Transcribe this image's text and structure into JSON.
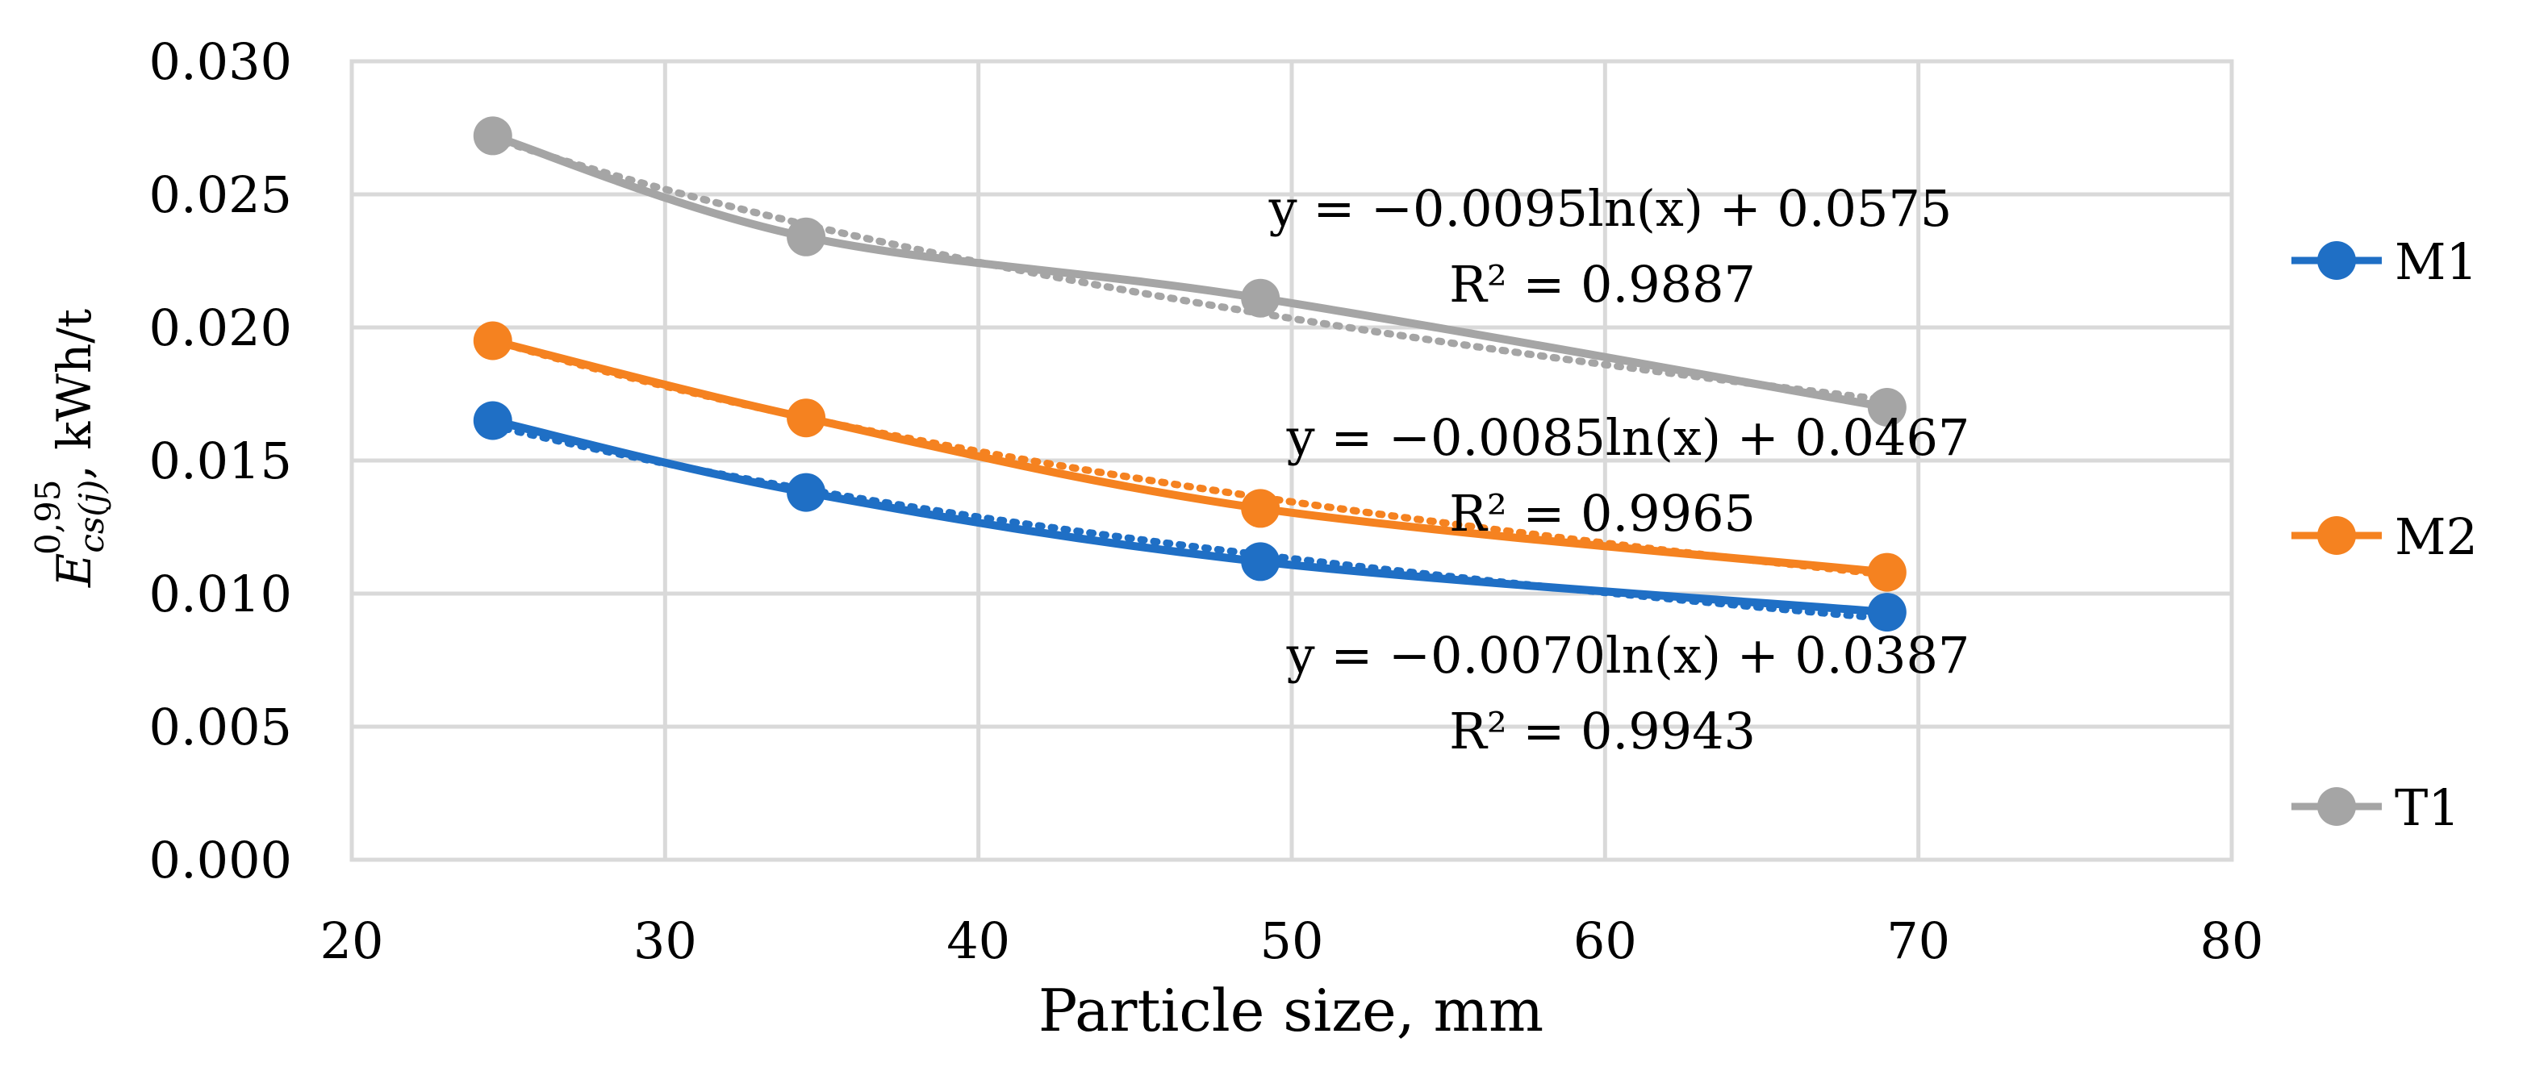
{
  "chart_data": {
    "type": "line",
    "title": "",
    "xlabel": "Particle size, mm",
    "ylabel": {
      "symbol": "E",
      "superscript": "0,95",
      "subscript": "cs(j)",
      "unit": ", kWh/t"
    },
    "xlim": [
      20,
      80
    ],
    "ylim": [
      0,
      0.03
    ],
    "xticks": [
      "20",
      "30",
      "40",
      "50",
      "60",
      "70",
      "80"
    ],
    "yticks": [
      "0.000",
      "0.005",
      "0.010",
      "0.015",
      "0.020",
      "0.025",
      "0.030"
    ],
    "grid": true,
    "legend_position": "right",
    "x": [
      24.5,
      34.5,
      49,
      69
    ],
    "series": [
      {
        "name": "M1",
        "color": "#1f6fc5",
        "values": [
          0.0165,
          0.0138,
          0.0112,
          0.0093
        ],
        "trendline": {
          "type": "logarithmic",
          "a": -0.007,
          "b": 0.0387
        },
        "equation": "y = −0.0070ln(x) + 0.0387",
        "r2": "R² = 0.9943"
      },
      {
        "name": "M2",
        "color": "#f58220",
        "values": [
          0.0195,
          0.0166,
          0.0132,
          0.0108
        ],
        "trendline": {
          "type": "logarithmic",
          "a": -0.0085,
          "b": 0.0467
        },
        "equation": "y = −0.0085ln(x) + 0.0467",
        "r2": "R² = 0.9965"
      },
      {
        "name": "T1",
        "color": "#a5a5a5",
        "values": [
          0.0272,
          0.0234,
          0.0211,
          0.017
        ],
        "trendline": {
          "type": "logarithmic",
          "a": -0.0095,
          "b": 0.0575
        },
        "equation": "y = −0.0095ln(x) + 0.0575",
        "r2": "R² = 0.9887"
      }
    ]
  }
}
